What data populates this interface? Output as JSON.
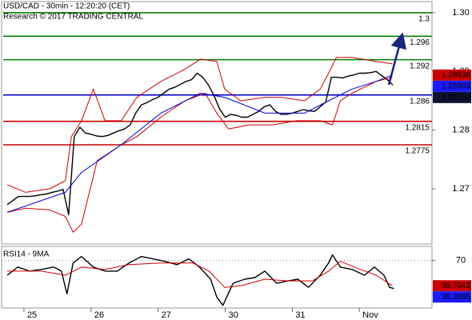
{
  "chart_data": [
    {
      "type": "line",
      "title": "USD/CAD - 30min - 12:20:20 (CET)",
      "subtitle": "Research © 2017 TRADING CENTRAL",
      "xlim": [
        -1,
        76
      ],
      "ylim": [
        1.2606,
        1.3019
      ],
      "yticks": [
        {
          "value": 1.3,
          "label": "1.30"
        },
        1.29,
        1.28,
        1.27
      ],
      "series": [
        {
          "color": "#000000",
          "x": [
            0,
            1,
            2,
            3,
            4,
            5,
            6,
            7,
            8,
            9,
            10,
            11,
            12,
            13,
            14,
            15,
            16,
            17,
            18,
            19,
            20,
            21,
            22,
            23,
            24,
            25,
            26,
            27,
            28,
            29,
            30,
            31,
            32,
            33,
            34,
            35,
            36,
            37,
            38,
            39,
            40,
            41,
            42,
            43,
            44,
            45,
            46,
            47,
            48,
            49,
            50,
            51,
            52,
            53,
            54,
            55,
            56,
            57,
            58,
            59,
            60,
            61,
            62,
            63,
            64,
            65,
            66,
            67,
            68,
            69
          ],
          "values": [
            1.2673,
            1.268,
            1.2687,
            1.2687,
            1.2687,
            1.2688,
            1.269,
            1.2691,
            1.2694,
            1.2696,
            1.2699,
            1.2656,
            1.2789,
            1.2805,
            1.2795,
            1.2793,
            1.279,
            1.2789,
            1.2791,
            1.2795,
            1.2799,
            1.2802,
            1.2809,
            1.2829,
            1.2843,
            1.2847,
            1.2852,
            1.2856,
            1.2863,
            1.287,
            1.2873,
            1.2878,
            1.2883,
            1.2886,
            1.2897,
            1.289,
            1.2877,
            1.2859,
            1.2836,
            1.2822,
            1.2827,
            1.2825,
            1.2822,
            1.2822,
            1.2827,
            1.2832,
            1.284,
            1.2843,
            1.2832,
            1.2827,
            1.2827,
            1.2829,
            1.2832,
            1.2835,
            1.2833,
            1.2832,
            1.284,
            1.2848,
            1.289,
            1.289,
            1.2889,
            1.2892,
            1.2894,
            1.2897,
            1.2897,
            1.2898,
            1.29,
            1.2893,
            1.2886,
            1.28769
          ]
        },
        {
          "color": "#cc0000",
          "x": [
            0,
            3.3,
            7.6,
            10.4,
            11.5,
            13.3,
            15.4,
            17.5,
            20.4,
            23.2,
            27.5,
            31.8,
            34.6,
            37.5,
            38.9,
            41.8,
            46.1,
            48.9,
            53.2,
            56,
            57.5,
            58.9,
            61.7,
            66,
            68.9
          ],
          "values": [
            1.2707,
            1.2694,
            1.27,
            1.2714,
            1.2789,
            1.2816,
            1.287,
            1.2816,
            1.2816,
            1.2856,
            1.2883,
            1.2904,
            1.2921,
            1.2917,
            1.287,
            1.285,
            1.2856,
            1.2856,
            1.285,
            1.287,
            1.2897,
            1.2924,
            1.2924,
            1.2917,
            1.2913
          ]
        },
        {
          "color": "#cc0000",
          "x": [
            0,
            3.3,
            7.6,
            10.4,
            11.8,
            13.3,
            16.1,
            20.4,
            23.2,
            27.5,
            31.8,
            35.4,
            37.5,
            39.6,
            43.2,
            47.5,
            51.8,
            56,
            58.2,
            59.6,
            61.7,
            66,
            68.9
          ],
          "values": [
            1.266,
            1.2667,
            1.2664,
            1.2653,
            1.2626,
            1.264,
            1.2748,
            1.2775,
            1.2789,
            1.2822,
            1.285,
            1.2863,
            1.2829,
            1.2802,
            1.2809,
            1.2809,
            1.2816,
            1.2816,
            1.2809,
            1.285,
            1.2863,
            1.2883,
            1.289
          ]
        },
        {
          "color": "#0000cc",
          "x": [
            0,
            10.4,
            13.3,
            20.4,
            27.5,
            34.6,
            38.9,
            46.1,
            53.2,
            57.5,
            61.7,
            66,
            68.9
          ],
          "values": [
            1.266,
            1.2694,
            1.2728,
            1.2775,
            1.2829,
            1.2863,
            1.2856,
            1.2829,
            1.2829,
            1.285,
            1.287,
            1.2883,
            1.2894
          ]
        }
      ],
      "levels": [
        {
          "value": 1.3,
          "color": "#008000"
        },
        {
          "value": 1.296,
          "color": "#008000"
        },
        {
          "value": 1.292,
          "color": "#008000"
        },
        {
          "value": 1.286,
          "color": "#0000cc"
        },
        {
          "value": 1.2815,
          "color": "#cc0000"
        },
        {
          "value": 1.2775,
          "color": "#cc0000"
        }
      ],
      "price_tags": [
        {
          "value": 1.28938,
          "color": "#cc0000"
        },
        {
          "value": 1.28903,
          "color": "#1a1aff"
        },
        {
          "value": 1.28769,
          "color": "#111133"
        }
      ]
    },
    {
      "type": "line",
      "title": "RSI14 - 9MA",
      "xlim": [
        -1,
        76
      ],
      "ylim": [
        13,
        87
      ],
      "yticks": [
        70
      ],
      "xticks": [
        {
          "value": 3,
          "label": "25"
        },
        {
          "value": 15,
          "label": "26"
        },
        {
          "value": 27,
          "label": "27"
        },
        {
          "value": 39,
          "label": "30"
        },
        {
          "value": 51,
          "label": "31"
        },
        {
          "value": 63,
          "label": "Nov"
        }
      ],
      "series": [
        {
          "color": "#000000",
          "x": [
            0,
            1.9,
            4,
            6.1,
            8.3,
            9.7,
            10.7,
            11.8,
            13.3,
            15.4,
            17.5,
            19.7,
            21.8,
            24,
            26.1,
            28.2,
            30.4,
            32.5,
            34.4,
            36.4,
            37.5,
            38.6,
            40.4,
            42.5,
            44.3,
            46.1,
            48.2,
            50.3,
            52,
            53.9,
            56,
            57.5,
            58.2,
            59.6,
            61.7,
            63.9,
            65.7,
            67.4,
            68.4,
            69.2
          ],
          "values": [
            52.4,
            62.2,
            57.3,
            59.3,
            62.2,
            57.3,
            30,
            67.1,
            74.9,
            62.2,
            57.3,
            57.3,
            67.1,
            74.9,
            72,
            69,
            65.1,
            72,
            62.2,
            47.6,
            26.1,
            16.3,
            42.7,
            47.6,
            49.5,
            57.3,
            42.7,
            45.6,
            47.6,
            37.8,
            52.4,
            67.1,
            76.8,
            62.2,
            59.3,
            52.4,
            62.2,
            52.4,
            37.8,
            36.3686
          ]
        },
        {
          "color": "#cc0000",
          "x": [
            0,
            6.1,
            10.4,
            13.3,
            17.5,
            21.8,
            27.5,
            33.2,
            36.1,
            38.9,
            41.8,
            46.1,
            50.3,
            54.6,
            57.5,
            59.6,
            63.2,
            66,
            68.9
          ],
          "values": [
            57.3,
            57.3,
            52.4,
            62.2,
            59.3,
            65.1,
            67.1,
            67.1,
            57.3,
            37.8,
            39.8,
            47.6,
            45.6,
            45.6,
            57.3,
            69,
            59.3,
            52.4,
            39.7043
          ]
        }
      ],
      "price_tags": [
        {
          "value": 39.7043,
          "color": "#cc0000"
        },
        {
          "value": 36.3686,
          "color": "#1a1aff"
        }
      ]
    }
  ]
}
